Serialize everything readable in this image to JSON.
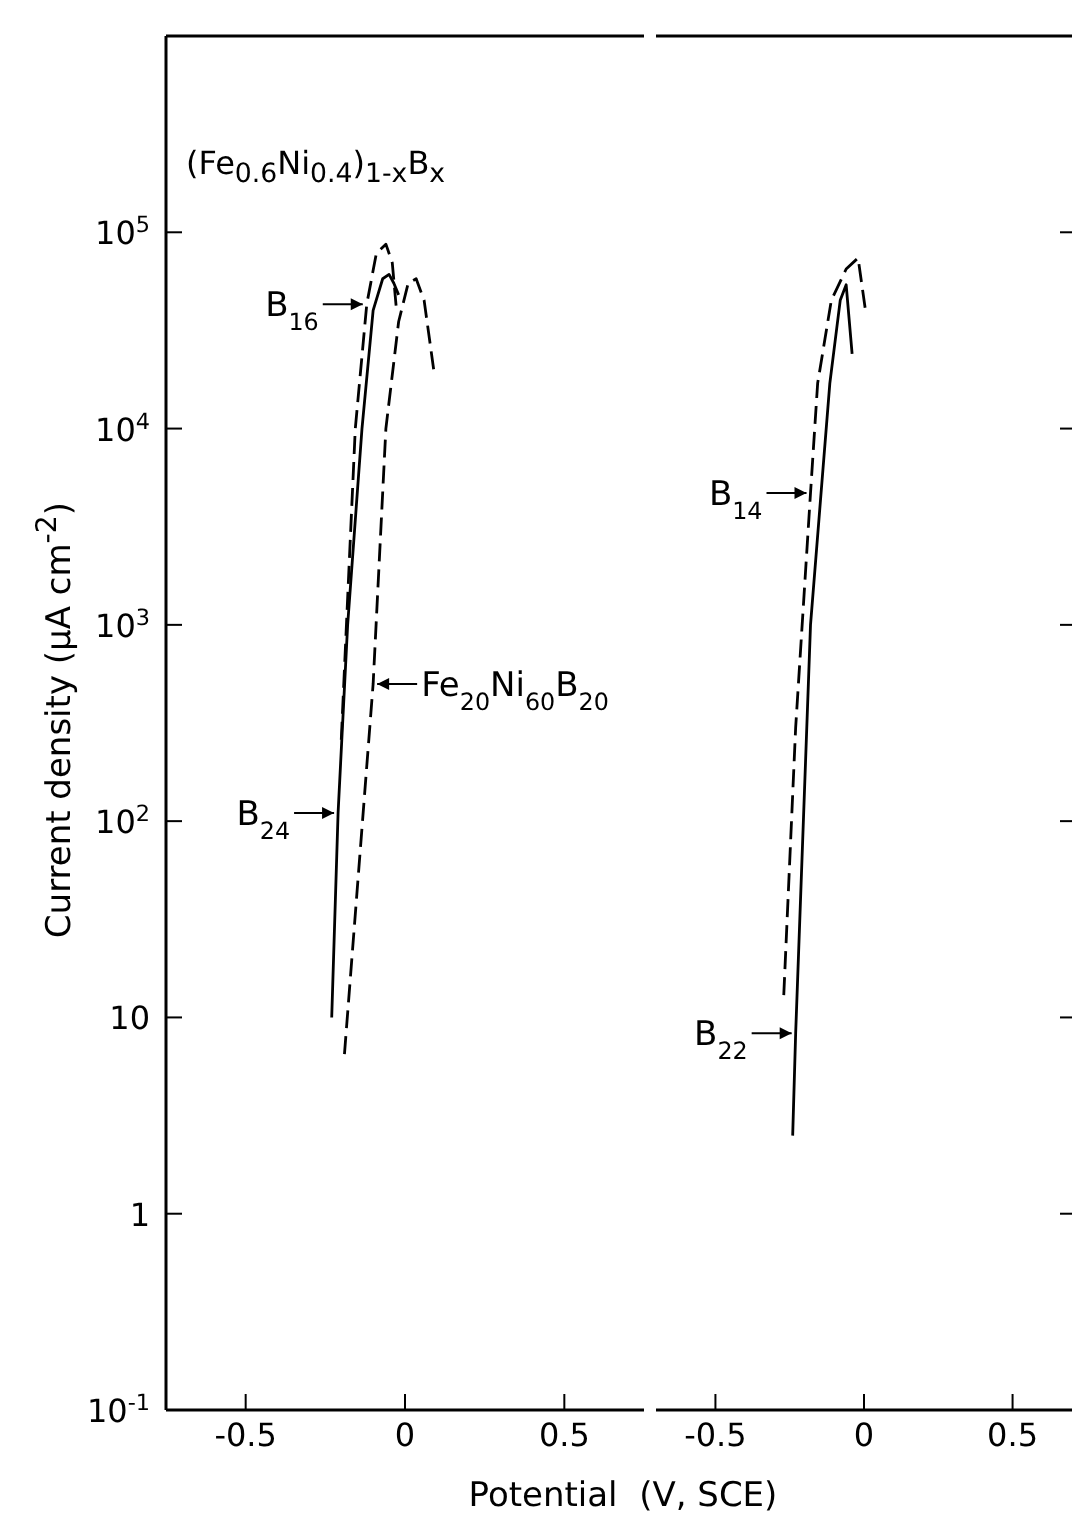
{
  "chart_data": [
    {
      "type": "line",
      "xlabel": "Potential  (V, SCE)",
      "ylabel": "Current density  (μA cm$^{-2}$)",
      "log": "y",
      "xlim": [
        -0.75,
        0.75
      ],
      "xticks": [
        -0.5,
        0,
        0.5
      ],
      "ylim": [
        0.1,
        1000000
      ],
      "yticks": [
        {
          "value": 0.1,
          "label": "10$^{-1}$"
        },
        1,
        10,
        {
          "value": 100,
          "label": "10$^{2}$"
        },
        {
          "value": 1000,
          "label": "10$^{3}$"
        },
        {
          "value": 10000,
          "label": "10$^{4}$"
        },
        {
          "value": 100000,
          "label": "10$^{5}$"
        }
      ],
      "annotations": [
        "(Fe$_{0.6}$Ni$_{0.4}$)$_{1-x}$B$_{x}$",
        {
          "text": "B$_{16}$",
          "x": -0.12,
          "y": 43000
        },
        {
          "text": "B$_{24}$",
          "x": -0.21,
          "y": 110
        },
        {
          "text": "Fe$_{20}$Ni$_{60}$B$_{20}$",
          "x": -0.1,
          "y": 500
        }
      ],
      "series": [
        {
          "color": "#000000",
          "line_style": "dashed",
          "x": [
            -0.2,
            -0.156,
            -0.12,
            -0.09,
            -0.06,
            -0.04,
            -0.026
          ],
          "values": [
            260,
            10000,
            43000,
            78000,
            87000,
            70000,
            39000
          ]
        },
        {
          "color": "#000000",
          "line_style": "solid",
          "x": [
            -0.23,
            -0.21,
            -0.18,
            -0.135,
            -0.1,
            -0.07,
            -0.05,
            -0.035,
            -0.02
          ],
          "values": [
            10,
            110,
            1000,
            10000,
            40000,
            58000,
            61000,
            55000,
            48000
          ]
        },
        {
          "color": "#000000",
          "line_style": "dashed",
          "x": [
            -0.19,
            -0.1,
            -0.06,
            -0.02,
            0.01,
            0.035,
            0.06,
            0.09
          ],
          "values": [
            6.5,
            500,
            10000,
            35000,
            55000,
            58000,
            45000,
            20000
          ]
        }
      ]
    },
    {
      "type": "line",
      "log": "y",
      "tick_labels": "x",
      "xlim": [
        -0.7,
        0.7
      ],
      "xticks": [
        -0.5,
        0,
        0.5
      ],
      "ylim": [
        0.1,
        1000000
      ],
      "yticks": [
        {
          "value": 0.1,
          "label": null
        },
        {
          "value": 1,
          "label": null
        },
        {
          "value": 10,
          "label": null
        },
        {
          "value": 100,
          "label": null
        },
        {
          "value": 1000,
          "label": null
        },
        {
          "value": 10000,
          "label": null
        },
        {
          "value": 100000,
          "label": null
        }
      ],
      "annotations": [
        {
          "text": "B$_{14}$",
          "x": -0.18,
          "y": 4700
        },
        {
          "text": "B$_{22}$",
          "x": -0.23,
          "y": 8.3
        }
      ],
      "series": [
        {
          "color": "#000000",
          "line_style": "dashed",
          "x": [
            -0.27,
            -0.23,
            -0.18,
            -0.156,
            -0.11,
            -0.06,
            -0.02,
            0.006
          ],
          "values": [
            13,
            300,
            4700,
            17000,
            45000,
            65000,
            74000,
            39000
          ]
        },
        {
          "color": "#000000",
          "line_style": "solid",
          "x": [
            -0.24,
            -0.23,
            -0.18,
            -0.115,
            -0.08,
            -0.06,
            -0.04
          ],
          "values": [
            2.5,
            8.3,
            1000,
            17000,
            45000,
            54000,
            24000
          ]
        }
      ]
    }
  ]
}
